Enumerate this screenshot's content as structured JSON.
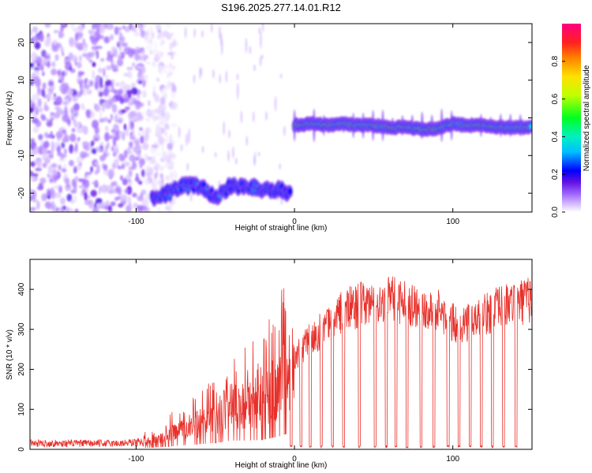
{
  "title": "S196.2025.277.14.01.R12",
  "colors": {
    "snr_line": "#e8302a",
    "frame": "#000000",
    "colormap": [
      "#ffffff",
      "#e6d8ff",
      "#b38cff",
      "#8040ff",
      "#6010e0",
      "#0000ff",
      "#00d8ff",
      "#00ff40",
      "#ffff00",
      "#ff8000",
      "#ff2020",
      "#ff0080"
    ]
  },
  "chart_data": [
    {
      "type": "heatmap",
      "name": "spectrogram",
      "xlabel": "Height of straight line (km)",
      "ylabel": "Frequency (Hz)",
      "xlim": [
        -167,
        150
      ],
      "ylim": [
        -25,
        25
      ],
      "xticks": [
        -100,
        0,
        100
      ],
      "xtick_labels": [
        "-100",
        "0",
        "100"
      ],
      "yticks": [
        -20,
        -10,
        0,
        10,
        20
      ],
      "ytick_labels": [
        "-20",
        "-10",
        "0",
        "10",
        "20"
      ],
      "colorbar": {
        "label": "Normalized spectral amplitude",
        "range": [
          0,
          1
        ],
        "ticks": [
          0,
          0.2,
          0.4,
          0.6,
          0.8
        ],
        "tick_labels": [
          "0.0",
          "0.2",
          "0.4",
          "0.6",
          "0.8"
        ]
      },
      "features": [
        {
          "description": "diffuse noise",
          "x_range": [
            -167,
            -85
          ],
          "y_range": [
            -25,
            25
          ],
          "amplitude": 0.15
        },
        {
          "description": "signal track",
          "points": [
            [
              -90,
              -21
            ],
            [
              -80,
              -20
            ],
            [
              -70,
              -18
            ],
            [
              -60,
              -18
            ],
            [
              -50,
              -21
            ],
            [
              -40,
              -18
            ],
            [
              -30,
              -18
            ],
            [
              -20,
              -19
            ],
            [
              -10,
              -19
            ],
            [
              -2,
              -20
            ]
          ],
          "amplitude": 0.4
        },
        {
          "description": "signal track",
          "points": [
            [
              0,
              -2
            ],
            [
              10,
              -1.5
            ],
            [
              20,
              -2
            ],
            [
              30,
              -1.5
            ],
            [
              40,
              -2
            ],
            [
              50,
              -2
            ],
            [
              60,
              -2.5
            ],
            [
              70,
              -2.5
            ],
            [
              80,
              -3
            ],
            [
              90,
              -3
            ],
            [
              100,
              -1.5
            ],
            [
              110,
              -2
            ],
            [
              120,
              -2
            ],
            [
              130,
              -2.5
            ],
            [
              140,
              -2.5
            ],
            [
              150,
              -2.5
            ]
          ],
          "amplitude": 0.8
        }
      ]
    },
    {
      "type": "line",
      "name": "snr",
      "xlabel": "Height of straight line (km)",
      "ylabel": "SNR (10 * v/v)",
      "xlim": [
        -167,
        150
      ],
      "ylim": [
        0,
        475
      ],
      "xticks": [
        -100,
        0,
        100
      ],
      "xtick_labels": [
        "-100",
        "0",
        "100"
      ],
      "yticks": [
        0,
        100,
        200,
        300,
        400
      ],
      "ytick_labels": [
        "0",
        "100",
        "200",
        "300",
        "400"
      ],
      "trend": {
        "x": [
          -167,
          -110,
          -90,
          -80,
          -70,
          -60,
          -50,
          -40,
          -30,
          -20,
          -10,
          0,
          10,
          20,
          30,
          40,
          50,
          60,
          70,
          80,
          90,
          100,
          110,
          120,
          130,
          140,
          150
        ],
        "y": [
          15,
          15,
          20,
          35,
          50,
          65,
          80,
          110,
          110,
          120,
          160,
          225,
          275,
          305,
          345,
          360,
          365,
          375,
          370,
          355,
          350,
          315,
          320,
          335,
          355,
          365,
          375
        ]
      },
      "dropouts_x": [
        -2,
        4,
        10,
        17,
        24,
        31,
        41,
        51,
        58,
        64,
        71,
        80,
        88,
        97,
        104,
        111,
        118,
        125,
        132,
        140
      ]
    }
  ]
}
